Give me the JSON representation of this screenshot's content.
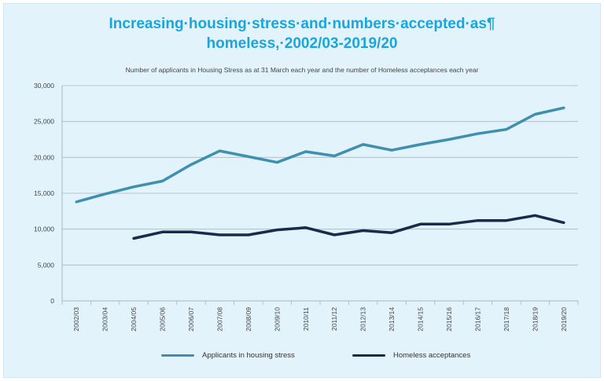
{
  "title": {
    "line1": "Increasing·housing·stress·and·numbers·accepted·as¶",
    "line2": "homeless,·2002/03-2019/20"
  },
  "subtitle": "Number of applicants in Housing Stress as at 31 March each year and the number of Homeless acceptances each year",
  "colors": {
    "panel": "#e3f3fb",
    "title": "#1aa6dc",
    "stress": "#3f90b0",
    "homeless": "#1b2a4a",
    "grid": "#aab6bd"
  },
  "chart_data": {
    "type": "line",
    "categories": [
      "2002/03",
      "2003/04",
      "2004/05",
      "2005/06",
      "2006/07",
      "2007/08",
      "2008/09",
      "2009/10",
      "2010/11",
      "2011/12",
      "2012/13",
      "2013/14",
      "2014/15",
      "2015/16",
      "2016/17",
      "2017/18",
      "2018/19",
      "2019/20"
    ],
    "ylim": [
      0,
      30000
    ],
    "yticks": [
      "0",
      "5,000",
      "10,000",
      "15,000",
      "20,000",
      "25,000",
      "30,000"
    ],
    "series": [
      {
        "name": "Applicants in housing stress",
        "color": "#3f90b0",
        "values": [
          13800,
          14900,
          15900,
          16700,
          19000,
          20900,
          20100,
          19300,
          20800,
          20200,
          21800,
          21000,
          21800,
          22500,
          23300,
          23900,
          26000,
          26900
        ]
      },
      {
        "name": "Homeless acceptances",
        "color": "#1b2a4a",
        "values": [
          null,
          null,
          8700,
          9600,
          9600,
          9200,
          9200,
          9900,
          10200,
          9200,
          9800,
          9500,
          10700,
          10700,
          11200,
          11200,
          11900,
          10900
        ]
      }
    ]
  }
}
